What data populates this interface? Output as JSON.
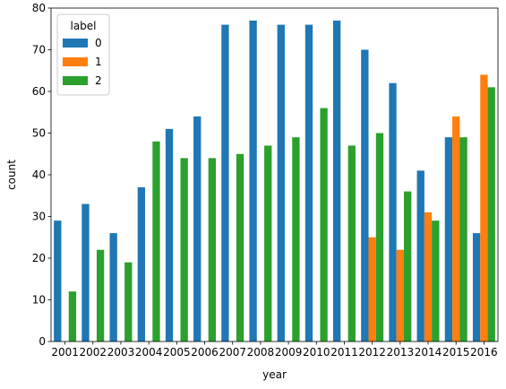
{
  "chart_data": {
    "type": "bar",
    "xlabel": "year",
    "ylabel": "count",
    "ylim": [
      0,
      80
    ],
    "yticks": [
      0,
      10,
      20,
      30,
      40,
      50,
      60,
      70,
      80
    ],
    "grid": false,
    "legend": {
      "title": "label",
      "placement": "top-left"
    },
    "categories": [
      "2001",
      "2002",
      "2003",
      "2004",
      "2005",
      "2006",
      "2007",
      "2008",
      "2009",
      "2010",
      "2011",
      "2012",
      "2013",
      "2014",
      "2015",
      "2016"
    ],
    "series": [
      {
        "name": "0",
        "color": "#1f77b4",
        "values": [
          29,
          33,
          26,
          37,
          51,
          54,
          76,
          77,
          76,
          76,
          77,
          70,
          62,
          41,
          49,
          26
        ]
      },
      {
        "name": "1",
        "color": "#ff7f0e",
        "values": [
          0,
          0,
          0,
          0,
          0,
          0,
          0,
          0,
          0,
          0,
          0,
          25,
          22,
          31,
          54,
          64
        ]
      },
      {
        "name": "2",
        "color": "#2ca02c",
        "values": [
          12,
          22,
          19,
          48,
          44,
          44,
          45,
          47,
          49,
          56,
          47,
          50,
          36,
          29,
          49,
          61
        ]
      }
    ]
  }
}
